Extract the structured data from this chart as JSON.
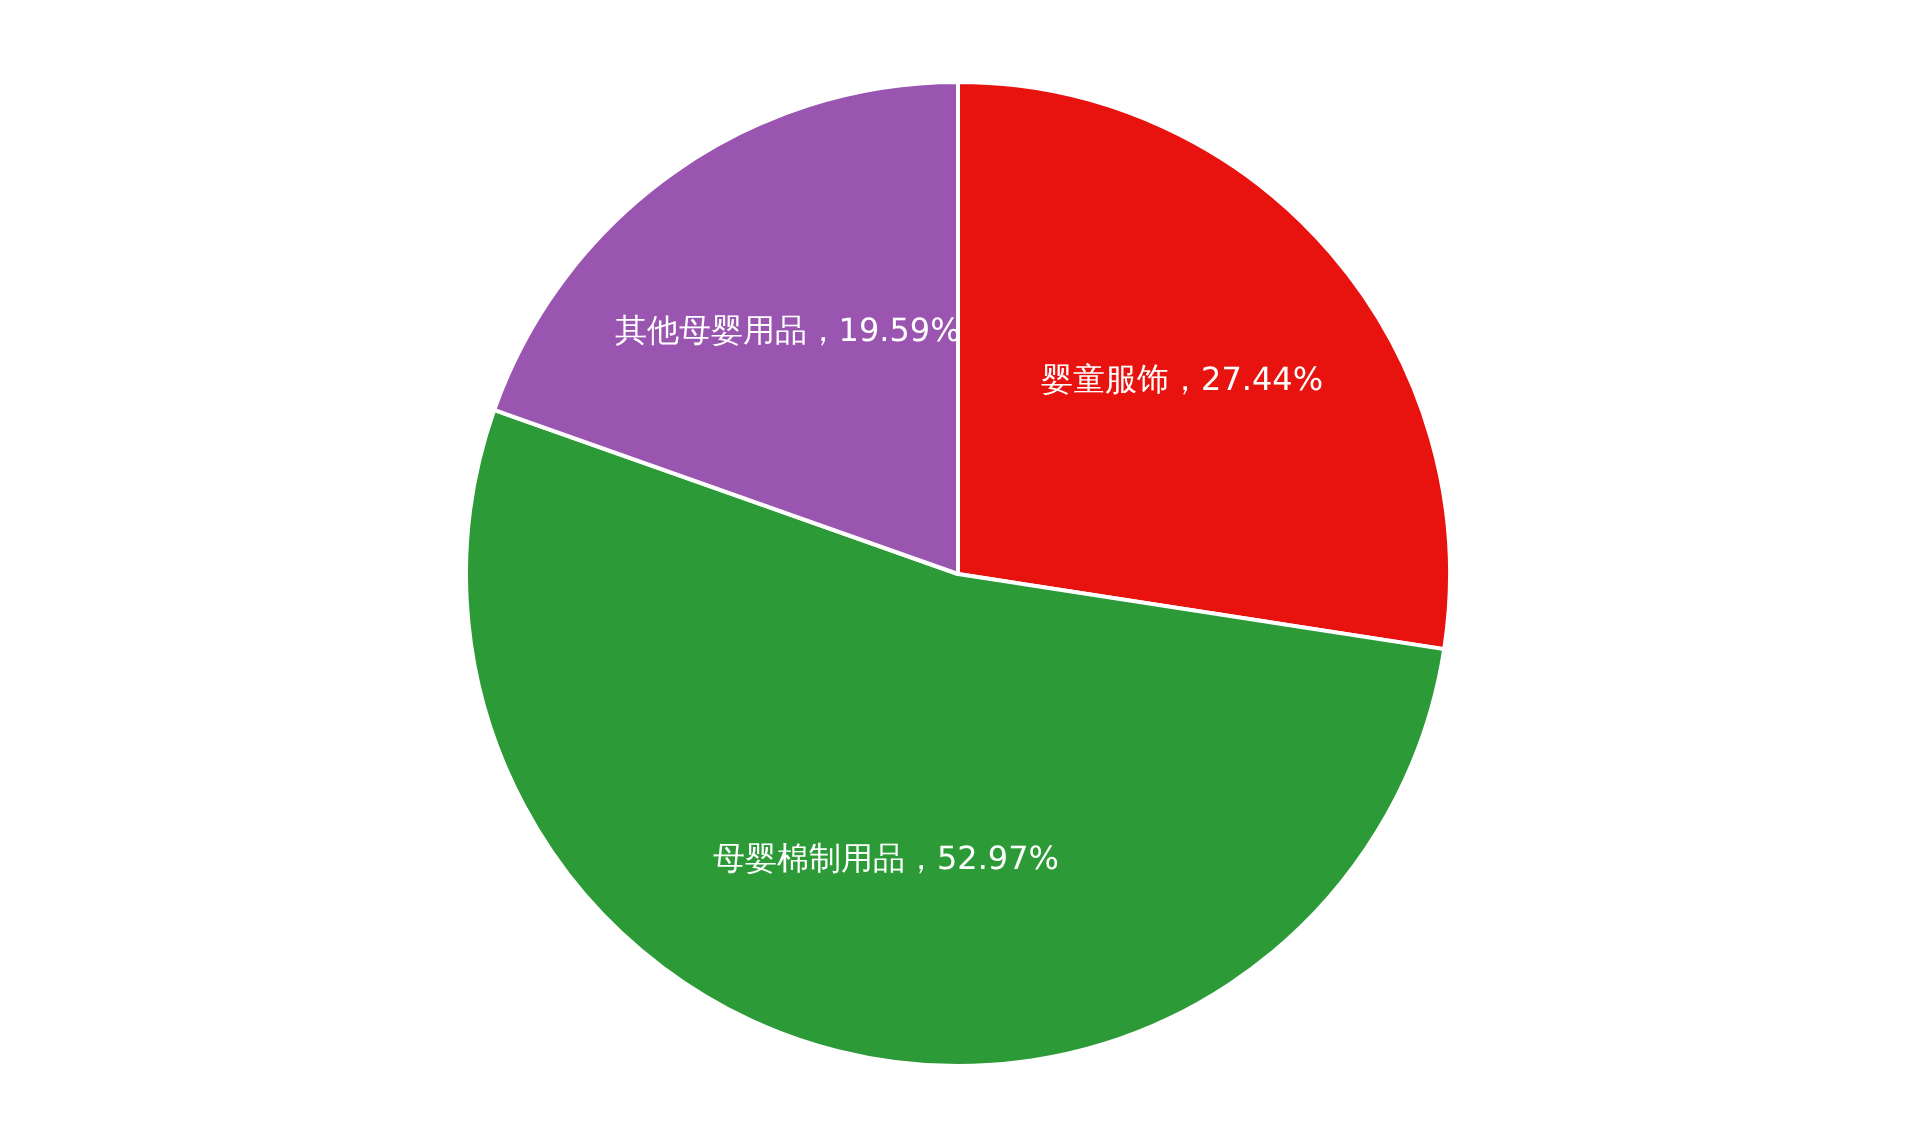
{
  "chart_data": {
    "type": "pie",
    "categories": [
      "婴童服饰",
      "母婴棉制用品",
      "其他母婴用品"
    ],
    "values": [
      27.44,
      52.97,
      19.59
    ],
    "colors": [
      "#e8130f",
      "#2b9a37",
      "#9a55b0"
    ],
    "value_labels": [
      "27.44%",
      "52.97%",
      "19.59%"
    ],
    "legend": false
  }
}
